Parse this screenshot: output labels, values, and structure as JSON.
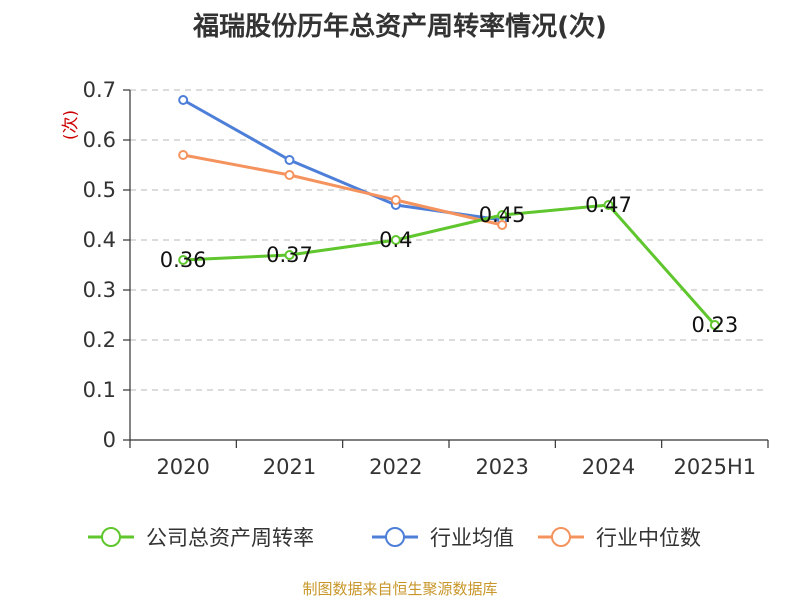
{
  "title": "福瑞股份历年总资产周转率情况(次)",
  "source": "制图数据来自恒生聚源数据库",
  "chart_data": {
    "type": "line",
    "title": "福瑞股份历年总资产周转率情况(次)",
    "ylabel": "(次)",
    "categories": [
      "2020",
      "2021",
      "2022",
      "2023",
      "2024",
      "2025H1"
    ],
    "ylim": [
      0,
      0.7
    ],
    "yticks": [
      "0",
      "0.1",
      "0.2",
      "0.3",
      "0.4",
      "0.5",
      "0.6",
      "0.7"
    ],
    "grid": true,
    "legend_position": "bottom",
    "series": [
      {
        "name": "公司总资产周转率",
        "color": "#5fc62e",
        "values": [
          0.36,
          0.37,
          0.4,
          0.45,
          0.47,
          0.23
        ],
        "labels": [
          "0.36",
          "0.37",
          "0.4",
          "0.45",
          "0.47",
          "0.23"
        ]
      },
      {
        "name": "行业均值",
        "color": "#4e7fd8",
        "values": [
          0.68,
          0.56,
          0.47,
          0.44,
          null,
          null
        ]
      },
      {
        "name": "行业中位数",
        "color": "#f5935e",
        "values": [
          0.57,
          0.53,
          0.48,
          0.43,
          null,
          null
        ]
      }
    ]
  }
}
